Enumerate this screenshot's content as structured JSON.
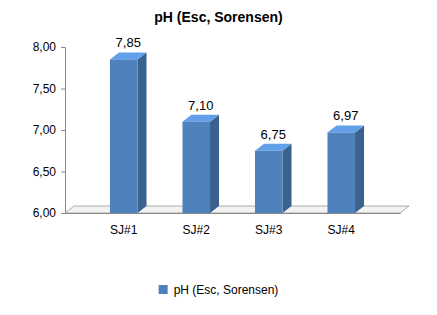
{
  "chart_data": {
    "type": "bar",
    "title": "pH (Esc, Sorensen)",
    "categories": [
      "SJ#1",
      "SJ#2",
      "SJ#3",
      "SJ#4"
    ],
    "series": [
      {
        "name": "pH (Esc, Sorensen)",
        "color": "#4f81bd",
        "values": [
          7.85,
          7.1,
          6.75,
          6.97
        ],
        "value_labels": [
          "7,85",
          "7,10",
          "6,75",
          "6,97"
        ]
      }
    ],
    "ylim": [
      6,
      8
    ],
    "yticks": [
      {
        "value": 6,
        "label": "6,00"
      },
      {
        "value": 6.5,
        "label": "6,50"
      },
      {
        "value": 7,
        "label": "7,00"
      },
      {
        "value": 7.5,
        "label": "7,50"
      },
      {
        "value": 8,
        "label": "8,00"
      }
    ],
    "grid": false,
    "legend": "bottom",
    "data_labels": true
  }
}
